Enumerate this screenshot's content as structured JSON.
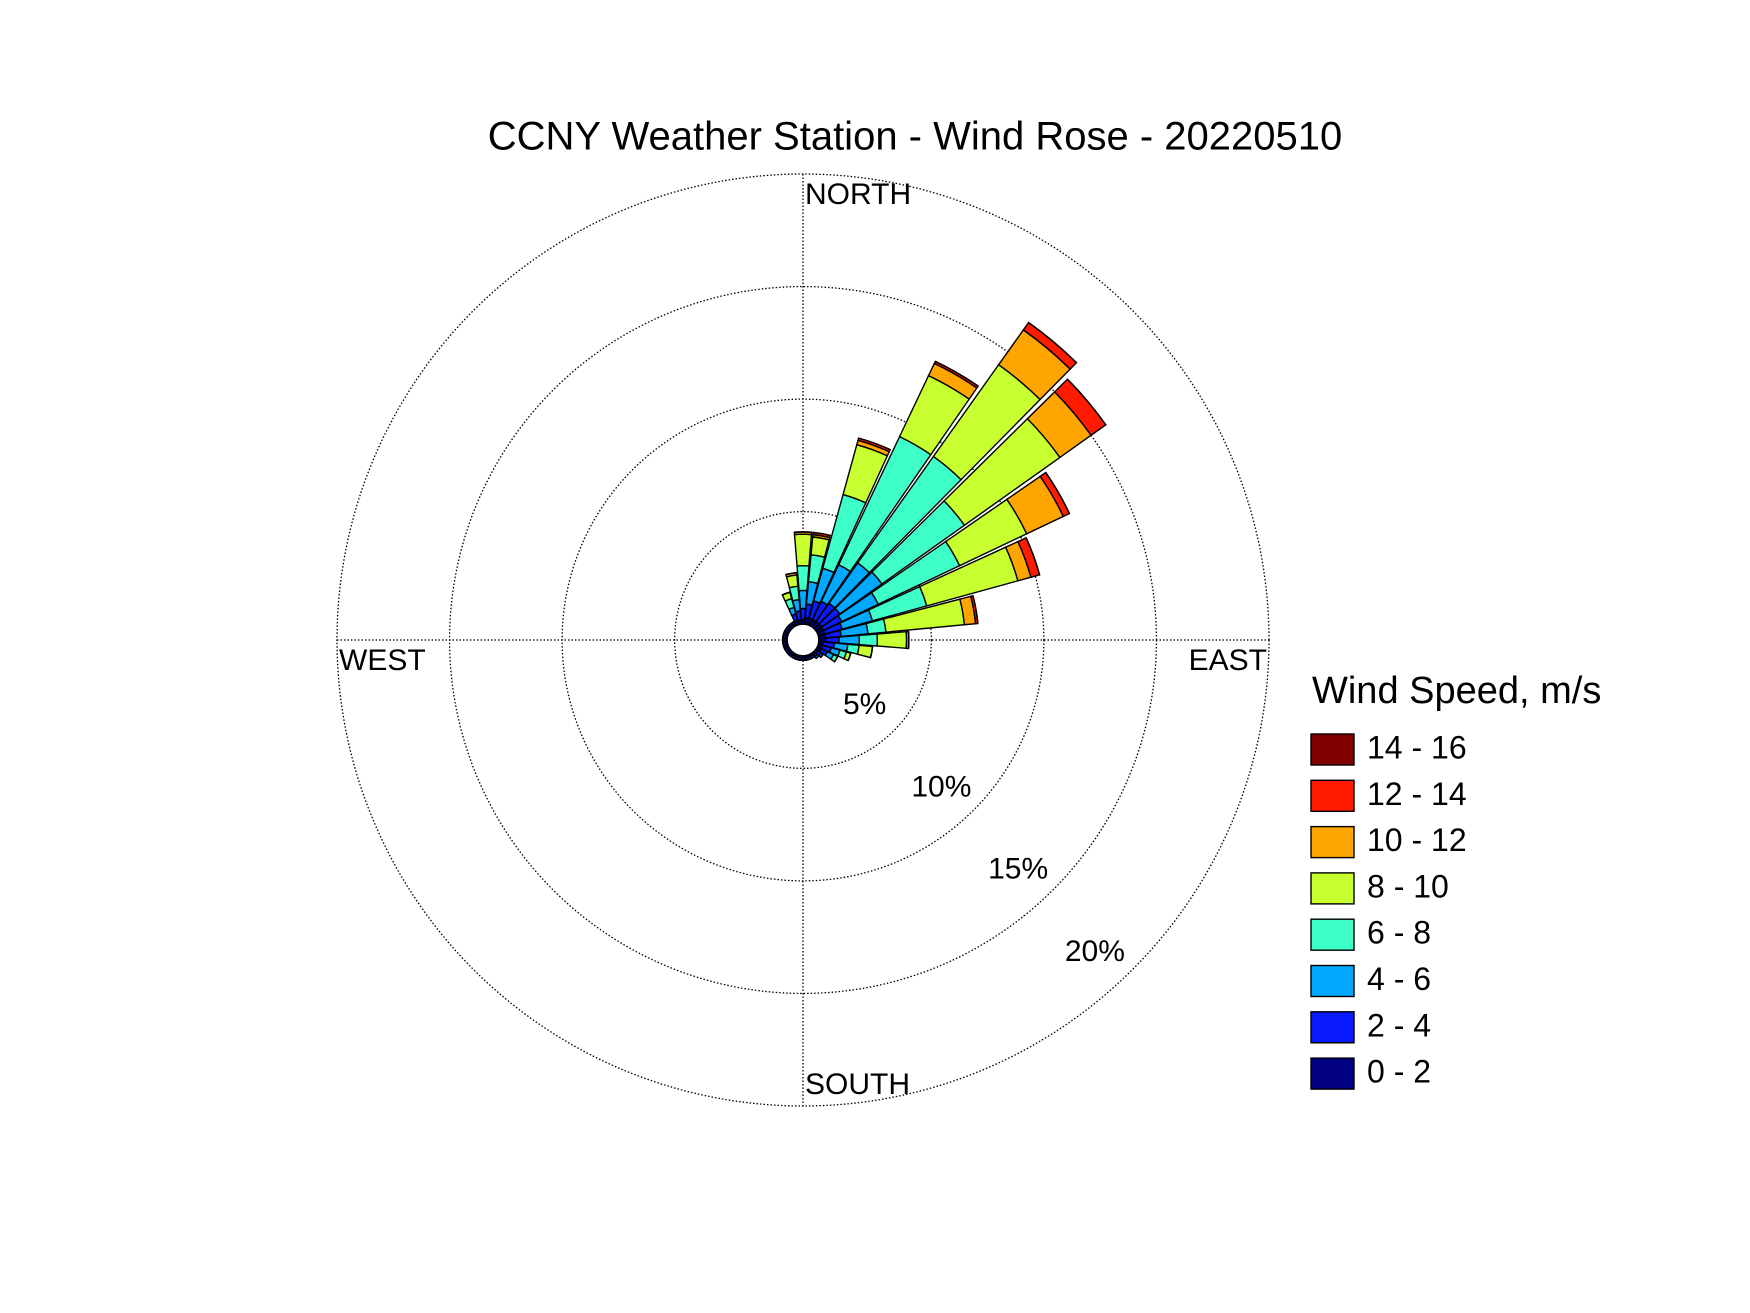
{
  "chart_data": {
    "type": "windrose",
    "title": "CCNY Weather Station - Wind Rose - 20220510",
    "direction_labels": [
      "NORTH",
      "EAST",
      "SOUTH",
      "WEST"
    ],
    "legend_title": "Wind Speed, m/s",
    "theta": [
      0,
      10,
      20,
      30,
      40,
      50,
      60,
      70,
      80,
      90,
      100,
      110,
      120,
      130,
      140,
      150,
      160,
      170,
      180,
      190,
      200,
      210,
      220,
      230,
      240,
      250,
      260,
      270,
      280,
      290,
      300,
      310,
      320,
      330,
      340,
      350
    ],
    "rlim": [
      0,
      20
    ],
    "rticks": [
      {
        "value": 5,
        "label": "5%"
      },
      {
        "value": 10,
        "label": "10%"
      },
      {
        "value": 15,
        "label": "15%"
      },
      {
        "value": 20,
        "label": "20%"
      }
    ],
    "grid": true,
    "series": [
      {
        "name": "0 - 2",
        "color": "#000080",
        "values": [
          0.2,
          0.3,
          0.3,
          0.3,
          0.3,
          0.3,
          0.3,
          0.3,
          0.3,
          0.3,
          0.2,
          0.2,
          0.2,
          0.1,
          0.1,
          0.1,
          0.1,
          0.1,
          0.1,
          0.1,
          0.1,
          0.1,
          0.1,
          0.1,
          0.1,
          0.1,
          0.1,
          0.1,
          0.1,
          0.1,
          0.1,
          0.1,
          0.1,
          0.1,
          0.2,
          0.2
        ]
      },
      {
        "name": "2 - 4",
        "color": "#0a1aff",
        "values": [
          0.5,
          0.6,
          0.8,
          0.9,
          1.0,
          1.0,
          0.9,
          0.8,
          0.7,
          0.6,
          0.5,
          0.4,
          0.3,
          0.2,
          0.1,
          0.1,
          0.1,
          0.1,
          0.1,
          0.1,
          0.1,
          0.1,
          0.1,
          0.1,
          0.1,
          0.1,
          0.1,
          0.1,
          0.1,
          0.1,
          0.1,
          0.1,
          0.1,
          0.1,
          0.3,
          0.4
        ]
      },
      {
        "name": "4 - 6",
        "color": "#00a8ff",
        "values": [
          0.8,
          1.0,
          1.5,
          1.8,
          2.2,
          2.3,
          1.8,
          1.4,
          1.2,
          0.9,
          0.6,
          0.4,
          0.3,
          0.1,
          0.1,
          0,
          0,
          0,
          0,
          0,
          0,
          0,
          0,
          0,
          0,
          0,
          0,
          0,
          0,
          0,
          0,
          0,
          0,
          0,
          0.3,
          0.5
        ]
      },
      {
        "name": "6 - 8",
        "color": "#3fffc8",
        "values": [
          1.1,
          1.2,
          3.4,
          6.3,
          5.8,
          4.5,
          4.0,
          2.5,
          0.8,
          0.8,
          0.5,
          0.3,
          0.2,
          0,
          0,
          0,
          0,
          0,
          0,
          0,
          0,
          0,
          0,
          0,
          0,
          0,
          0,
          0,
          0,
          0,
          0,
          0,
          0,
          0,
          0.4,
          0.6
        ]
      },
      {
        "name": "8 - 10",
        "color": "#c8ff30",
        "values": [
          1.4,
          0.8,
          2.3,
          3.0,
          5.0,
          5.2,
          3.3,
          4.2,
          3.5,
          1.3,
          0.6,
          0.2,
          0,
          0,
          0,
          0,
          0,
          0,
          0,
          0,
          0,
          0,
          0,
          0,
          0,
          0,
          0,
          0,
          0,
          0,
          0,
          0,
          0,
          0,
          0.3,
          0.5
        ]
      },
      {
        "name": "10 - 12",
        "color": "#ffa500",
        "values": [
          0.1,
          0.1,
          0.2,
          0.6,
          1.9,
          1.7,
          1.8,
          0.6,
          0.5,
          0.1,
          0,
          0,
          0,
          0,
          0,
          0,
          0,
          0,
          0,
          0,
          0,
          0,
          0,
          0,
          0,
          0,
          0,
          0,
          0,
          0,
          0,
          0,
          0,
          0,
          0,
          0.1
        ]
      },
      {
        "name": "12 - 14",
        "color": "#ff1a00",
        "values": [
          0,
          0.1,
          0.1,
          0.1,
          0.4,
          0.8,
          0.3,
          0.4,
          0.1,
          0,
          0,
          0,
          0,
          0,
          0,
          0,
          0,
          0,
          0,
          0,
          0,
          0,
          0,
          0,
          0,
          0,
          0,
          0,
          0,
          0,
          0,
          0,
          0,
          0,
          0,
          0
        ]
      },
      {
        "name": "14 - 16",
        "color": "#800000",
        "values": [
          0,
          0,
          0,
          0,
          0,
          0,
          0,
          0,
          0,
          0,
          0,
          0,
          0,
          0,
          0,
          0,
          0,
          0,
          0,
          0,
          0,
          0,
          0,
          0,
          0,
          0,
          0,
          0,
          0,
          0,
          0,
          0,
          0,
          0,
          0,
          0
        ]
      }
    ]
  }
}
